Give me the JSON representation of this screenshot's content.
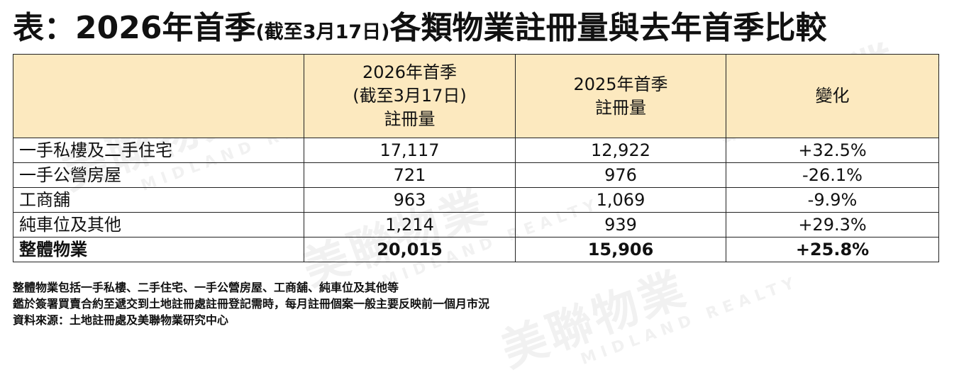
{
  "title": {
    "main_a": "表：2026年首季",
    "paren": "(截至3月17日)",
    "main_b": "各類物業註冊量與去年首季比較"
  },
  "table": {
    "headers": [
      {
        "lines": [
          "",
          "",
          ""
        ]
      },
      {
        "lines": [
          "2026年首季",
          "(截至3月17日)",
          "註冊量"
        ]
      },
      {
        "lines": [
          "2025年首季",
          "註冊量"
        ]
      },
      {
        "lines": [
          "變化"
        ]
      }
    ],
    "rows": [
      {
        "category": "一手私樓及二手住宅",
        "q1_2026": "17,117",
        "q1_2025": "12,922",
        "change": "+32.5%"
      },
      {
        "category": "一手公營房屋",
        "q1_2026": "721",
        "q1_2025": "976",
        "change": "-26.1%"
      },
      {
        "category": "工商舖",
        "q1_2026": "963",
        "q1_2025": "1,069",
        "change": "-9.9%"
      },
      {
        "category": "純車位及其他",
        "q1_2026": "1,214",
        "q1_2025": "939",
        "change": "+29.3%"
      },
      {
        "category": "整體物業",
        "q1_2026": "20,015",
        "q1_2025": "15,906",
        "change": "+25.8%"
      }
    ]
  },
  "notes": [
    "整體物業包括一手私樓、二手住宅、一手公營房屋、工商舖、純車位及其他等",
    "鑑於簽署買賣合約至遞交到土地註冊處註冊登記需時，每月註冊個案一般主要反映前一個月市況",
    "資料來源：土地註冊處及美聯物業研究中心"
  ],
  "watermark": {
    "brand_cn": "美聯物業",
    "brand_en": "MIDLAND REALTY"
  },
  "colors": {
    "header_bg": "#fce9bf",
    "border": "#222222",
    "text": "#111111"
  }
}
